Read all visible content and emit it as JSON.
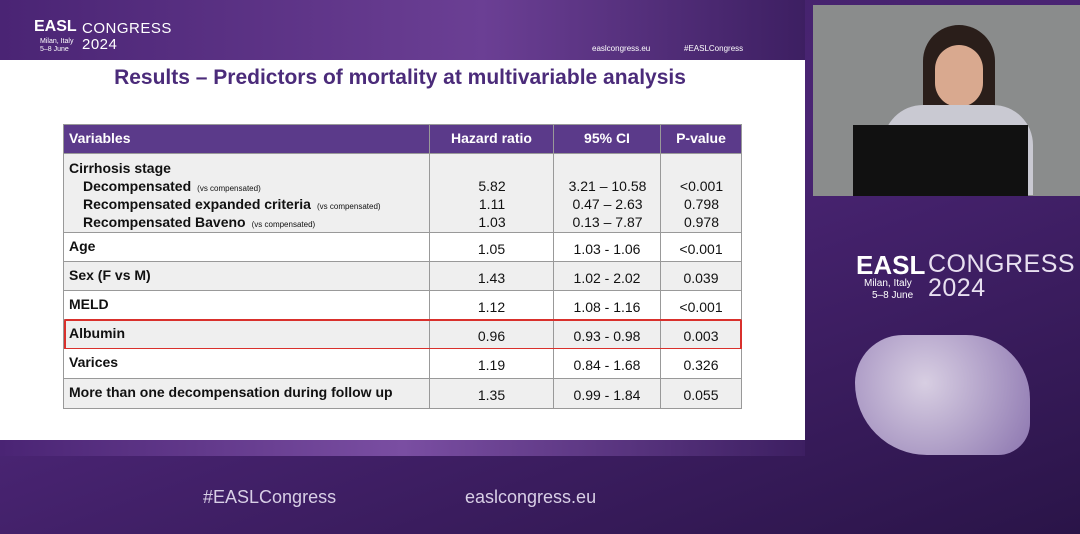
{
  "header": {
    "logo": {
      "brand": "EASL",
      "word": "CONGRESS",
      "place": "Milan, Italy",
      "dates": "5–8 June",
      "year": "2024"
    },
    "website": "easlcongress.eu",
    "hashtag": "#EASLCongress"
  },
  "slide_title": "Results – Predictors of mortality at multivariable analysis",
  "table": {
    "columns": [
      "Variables",
      "Hazard ratio",
      "95% CI",
      "P-value"
    ],
    "rows": [
      {
        "label": "Cirrhosis stage",
        "subrows": [
          {
            "label": "Decompensated",
            "note": "(vs compensated)",
            "cells": [
              "5.82",
              "3.21 – 10.58",
              "<0.001"
            ]
          },
          {
            "label": "Recompensated expanded criteria",
            "note": "(vs compensated)",
            "cells": [
              "1.11",
              "0.47 – 2.63",
              "0.798"
            ]
          },
          {
            "label": "Recompensated Baveno",
            "note": "(vs compensated)",
            "cells": [
              "1.03",
              "0.13 – 7.87",
              "0.978"
            ]
          }
        ]
      },
      {
        "label": "Age",
        "cells": [
          "1.05",
          "1.03 - 1.06",
          "<0.001"
        ]
      },
      {
        "label": "Sex (F vs M)",
        "cells": [
          "1.43",
          "1.02 - 2.02",
          "0.039"
        ]
      },
      {
        "label": "MELD",
        "cells": [
          "1.12",
          "1.08 - 1.16",
          "<0.001"
        ]
      },
      {
        "label": "Albumin",
        "cells": [
          "0.96",
          "0.93 - 0.98",
          "0.003"
        ],
        "highlight": true
      },
      {
        "label": "Varices",
        "cells": [
          "1.19",
          "0.84 - 1.68",
          "0.326"
        ]
      },
      {
        "label": "More than one decompensation during follow up",
        "cells": [
          "1.35",
          "0.99 - 1.84",
          "0.055"
        ]
      }
    ]
  },
  "side_logo": {
    "brand": "EASL",
    "word": "CONGRESS",
    "place": "Milan, Italy",
    "dates": "5–8 June",
    "year": "2024"
  },
  "footer": {
    "hashtag": "#EASLCongress",
    "website": "easlcongress.eu"
  }
}
